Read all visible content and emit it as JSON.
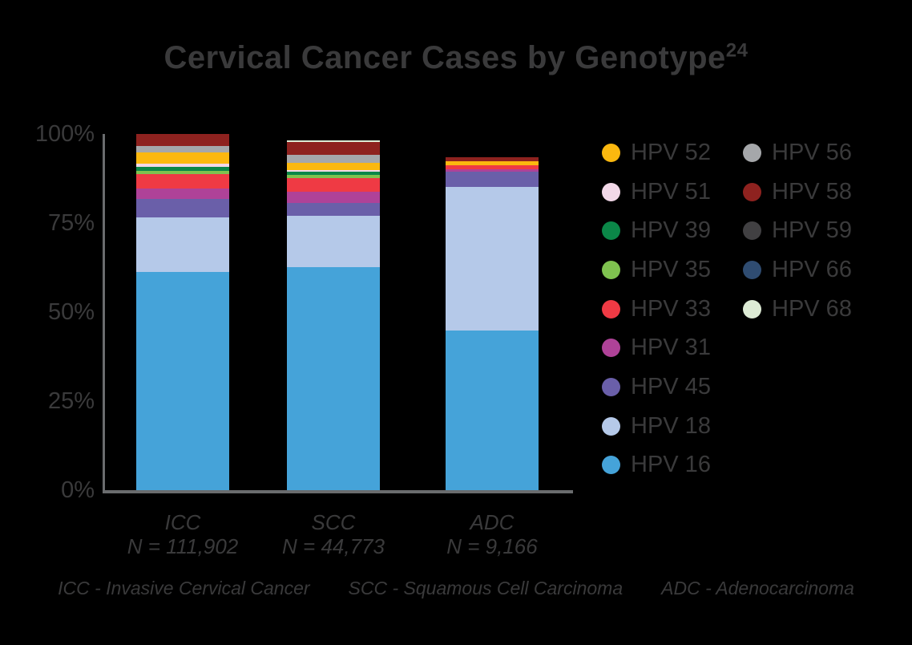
{
  "title": {
    "text": "Cervical Cancer Cases by Genotype",
    "superscript": "24"
  },
  "chart_data": {
    "type": "bar",
    "stacked": true,
    "title": "Cervical Cancer Cases by Genotype (superscript 24)",
    "xlabel": "",
    "ylabel": "",
    "ylim": [
      0,
      100
    ],
    "yticks": [
      {
        "label": "100%",
        "value": 100
      },
      {
        "label": "75%",
        "value": 75
      },
      {
        "label": "50%",
        "value": 50
      },
      {
        "label": "25%",
        "value": 25
      },
      {
        "label": "0%",
        "value": 0
      }
    ],
    "grid": false,
    "legend_position": "right",
    "categories": [
      "ICC",
      "SCC",
      "ADC"
    ],
    "category_sublabels": [
      "N = 111,902",
      "N = 44,773",
      "N = 9,166"
    ],
    "series_note": "values are percent of cases; listed bottom-to-top stack order",
    "series": [
      {
        "name": "HPV 16",
        "color": "#45a3d9",
        "values": [
          61.3,
          62.6,
          44.8
        ]
      },
      {
        "name": "HPV 18",
        "color": "#b5c9e9",
        "values": [
          15.3,
          14.4,
          40.3
        ]
      },
      {
        "name": "HPV 45",
        "color": "#6a5fa9",
        "values": [
          5.2,
          3.6,
          4.3
        ]
      },
      {
        "name": "HPV 31",
        "color": "#af4298",
        "values": [
          2.9,
          3.2,
          0.7
        ]
      },
      {
        "name": "HPV 33",
        "color": "#ef3a44",
        "values": [
          4.1,
          3.8,
          1.1
        ]
      },
      {
        "name": "HPV 35",
        "color": "#7fc24f",
        "values": [
          0.9,
          1.0,
          0
        ]
      },
      {
        "name": "HPV 39",
        "color": "#0b8748",
        "values": [
          1.1,
          0.8,
          0
        ]
      },
      {
        "name": "HPV 51",
        "color": "#f2d8e8",
        "values": [
          0.9,
          0.5,
          0
        ]
      },
      {
        "name": "HPV 52",
        "color": "#fbb80f",
        "values": [
          3.2,
          2.0,
          1.1
        ]
      },
      {
        "name": "HPV 56",
        "color": "#a5a7aa",
        "values": [
          1.8,
          2.3,
          0
        ]
      },
      {
        "name": "HPV 58",
        "color": "#8e221f",
        "values": [
          3.3,
          3.6,
          1.1
        ]
      },
      {
        "name": "HPV 59",
        "color": "#414042",
        "values": [
          0,
          0,
          0
        ]
      },
      {
        "name": "HPV 66",
        "color": "#2f4c71",
        "values": [
          0,
          0,
          0
        ]
      },
      {
        "name": "HPV 68",
        "color": "#ddebd5",
        "values": [
          0,
          0.5,
          0
        ]
      }
    ],
    "legend_column1": [
      "HPV 52",
      "HPV 51",
      "HPV 39",
      "HPV 35",
      "HPV 33",
      "HPV 31",
      "HPV 45",
      "HPV 18",
      "HPV 16"
    ],
    "legend_column2": [
      "HPV 56",
      "HPV 58",
      "HPV 59",
      "HPV 66",
      "HPV 68"
    ]
  },
  "footnotes": [
    "ICC - Invasive Cervical Cancer",
    "SCC - Squamous Cell Carcinoma",
    "ADC - Adenocarcinoma"
  ],
  "layout_colors": {
    "background": "#000000",
    "text": "#3a3a3b",
    "axis": "#6a6c6e"
  }
}
